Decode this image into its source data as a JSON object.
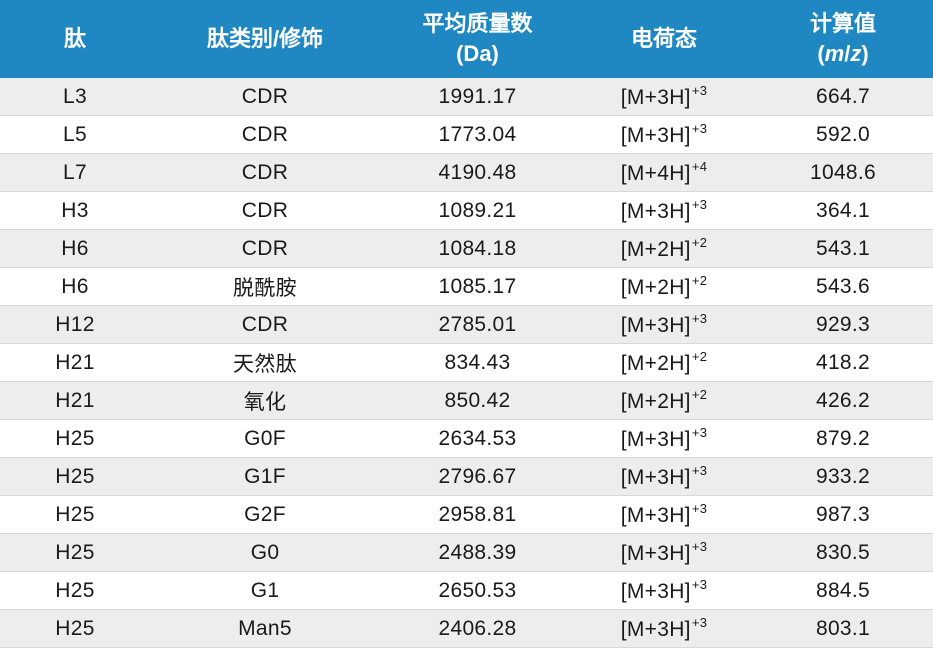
{
  "header": {
    "col_peptide": "肽",
    "col_type": "肽类别/修饰",
    "col_mass_line1": "平均质量数",
    "col_mass_line2": "(Da)",
    "col_charge": "电荷态",
    "col_calc_line1": "计算值",
    "col_calc_open": "(",
    "col_calc_m": "m",
    "col_calc_slash": "/",
    "col_calc_z": "z",
    "col_calc_close": ")"
  },
  "rows": [
    {
      "peptide": "L3",
      "type": "CDR",
      "mass": "1991.17",
      "charge_base": "[M+3H]",
      "charge_sup": "+3",
      "mz": "664.7"
    },
    {
      "peptide": "L5",
      "type": "CDR",
      "mass": "1773.04",
      "charge_base": "[M+3H]",
      "charge_sup": "+3",
      "mz": "592.0"
    },
    {
      "peptide": "L7",
      "type": "CDR",
      "mass": "4190.48",
      "charge_base": "[M+4H]",
      "charge_sup": "+4",
      "mz": "1048.6"
    },
    {
      "peptide": "H3",
      "type": "CDR",
      "mass": "1089.21",
      "charge_base": "[M+3H]",
      "charge_sup": "+3",
      "mz": "364.1"
    },
    {
      "peptide": "H6",
      "type": "CDR",
      "mass": "1084.18",
      "charge_base": "[M+2H]",
      "charge_sup": "+2",
      "mz": "543.1"
    },
    {
      "peptide": "H6",
      "type": "脱酰胺",
      "mass": "1085.17",
      "charge_base": "[M+2H]",
      "charge_sup": "+2",
      "mz": "543.6"
    },
    {
      "peptide": "H12",
      "type": "CDR",
      "mass": "2785.01",
      "charge_base": "[M+3H]",
      "charge_sup": "+3",
      "mz": "929.3"
    },
    {
      "peptide": "H21",
      "type": "天然肽",
      "mass": "834.43",
      "charge_base": "[M+2H]",
      "charge_sup": "+2",
      "mz": "418.2"
    },
    {
      "peptide": "H21",
      "type": "氧化",
      "mass": "850.42",
      "charge_base": "[M+2H]",
      "charge_sup": "+2",
      "mz": "426.2"
    },
    {
      "peptide": "H25",
      "type": "G0F",
      "mass": "2634.53",
      "charge_base": "[M+3H]",
      "charge_sup": "+3",
      "mz": "879.2"
    },
    {
      "peptide": "H25",
      "type": "G1F",
      "mass": "2796.67",
      "charge_base": "[M+3H]",
      "charge_sup": "+3",
      "mz": "933.2"
    },
    {
      "peptide": "H25",
      "type": "G2F",
      "mass": "2958.81",
      "charge_base": "[M+3H]",
      "charge_sup": "+3",
      "mz": "987.3"
    },
    {
      "peptide": "H25",
      "type": "G0",
      "mass": "2488.39",
      "charge_base": "[M+3H]",
      "charge_sup": "+3",
      "mz": "830.5"
    },
    {
      "peptide": "H25",
      "type": "G1",
      "mass": "2650.53",
      "charge_base": "[M+3H]",
      "charge_sup": "+3",
      "mz": "884.5"
    },
    {
      "peptide": "H25",
      "type": "Man5",
      "mass": "2406.28",
      "charge_base": "[M+3H]",
      "charge_sup": "+3",
      "mz": "803.1"
    }
  ],
  "colors": {
    "header_bg": "#1f88c2",
    "header_text": "#ffffff",
    "row_shade": "#ededed",
    "row_white": "#ffffff"
  }
}
